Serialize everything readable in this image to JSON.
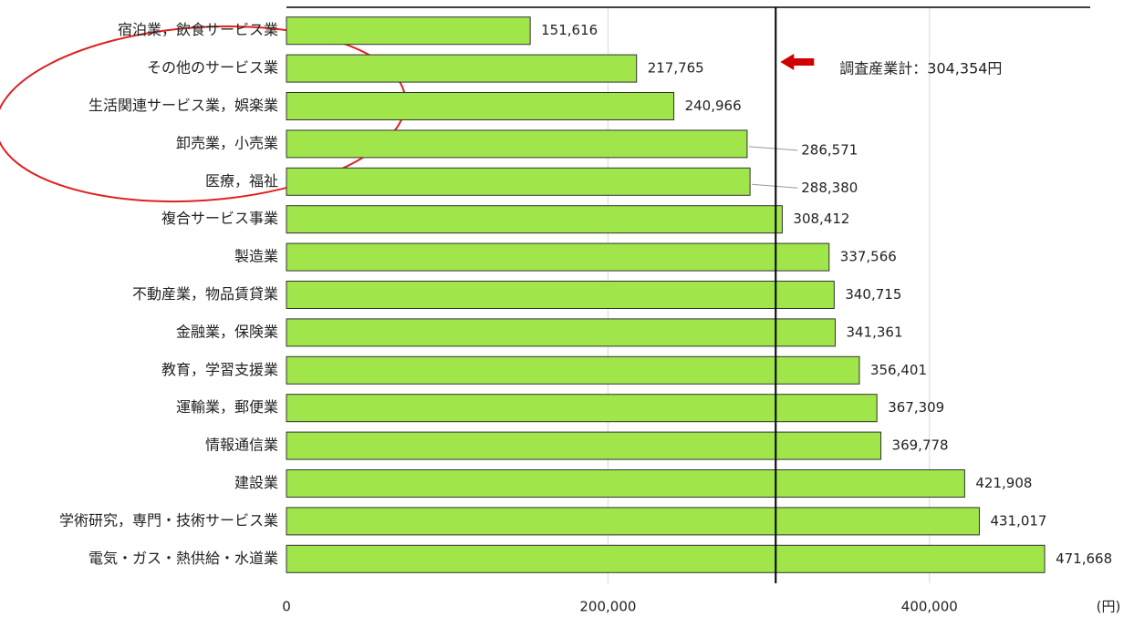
{
  "chart_data": {
    "type": "bar",
    "orientation": "horizontal",
    "categories": [
      "宿泊業，飲食サービス業",
      "その他のサービス業",
      "生活関連サービス業，娯楽業",
      "卸売業，小売業",
      "医療，福祉",
      "複合サービス事業",
      "製造業",
      "不動産業，物品賃貸業",
      "金融業，保険業",
      "教育，学習支援業",
      "運輸業，郵便業",
      "情報通信業",
      "建設業",
      "学術研究，専門・技術サービス業",
      "電気・ガス・熱供給・水道業"
    ],
    "values": [
      151616,
      217765,
      240966,
      286571,
      288380,
      308412,
      337566,
      340715,
      341361,
      356401,
      367309,
      369778,
      421908,
      431017,
      471668
    ],
    "value_labels": [
      "151,616",
      "217,765",
      "240,966",
      "286,571",
      "288,380",
      "308,412",
      "337,566",
      "340,715",
      "341,361",
      "356,401",
      "367,309",
      "369,778",
      "421,908",
      "431,017",
      "471,668"
    ],
    "color": "#a0e64a",
    "xlim": [
      0,
      500000
    ],
    "xticks": [
      0,
      {
        "value": 200000,
        "label": "200,000"
      },
      {
        "value": 400000,
        "label": "400,000"
      }
    ],
    "x_unit": "(円)",
    "grid": true,
    "reference": {
      "value": 304354,
      "label": "調査産業計：304,354円"
    }
  }
}
